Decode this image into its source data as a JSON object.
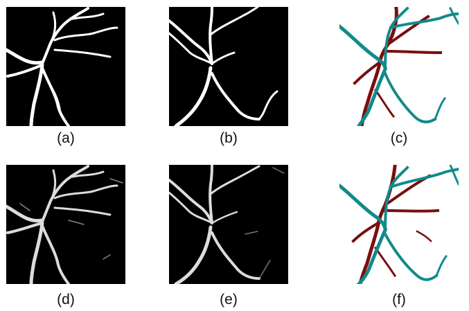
{
  "panels": [
    {
      "id": "a",
      "caption": "(a)",
      "style": "binary-mask",
      "background": "#000000",
      "vessel_color": "#ffffff"
    },
    {
      "id": "b",
      "caption": "(b)",
      "style": "binary-mask",
      "background": "#000000",
      "vessel_color": "#ffffff"
    },
    {
      "id": "c",
      "caption": "(c)",
      "style": "color-overlay",
      "background": "#ffffff",
      "colors": [
        "#128a8a",
        "#7a0e0e"
      ]
    },
    {
      "id": "d",
      "caption": "(d)",
      "style": "probability-map",
      "background": "#000000",
      "vessel_color": "#e8e8e8"
    },
    {
      "id": "e",
      "caption": "(e)",
      "style": "probability-map",
      "background": "#000000",
      "vessel_color": "#e8e8e8"
    },
    {
      "id": "f",
      "caption": "(f)",
      "style": "color-overlay",
      "background": "#ffffff",
      "colors": [
        "#128a8a",
        "#7a0e0e"
      ]
    }
  ]
}
